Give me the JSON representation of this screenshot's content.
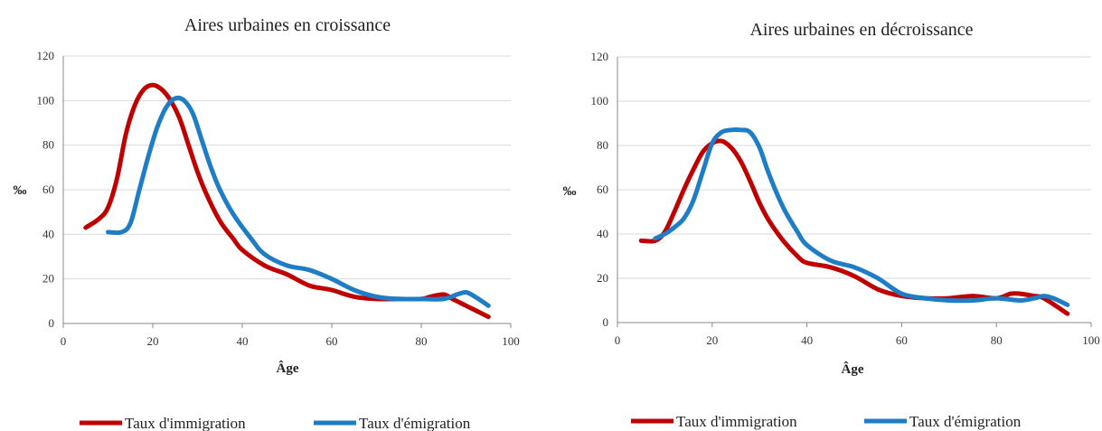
{
  "colors": {
    "immigration": "#c00000",
    "emigration": "#1f7dc6"
  },
  "chart_data": [
    {
      "type": "line",
      "title": "Aires urbaines en croissance",
      "xlabel": "Âge",
      "ylabel": "‰",
      "xlim": [
        0,
        100
      ],
      "ylim": [
        0,
        120
      ],
      "xticks": [
        0,
        20,
        40,
        60,
        80,
        100
      ],
      "yticks": [
        0,
        20,
        40,
        60,
        80,
        100,
        120
      ],
      "grid": "horizontal",
      "legend": "bottom",
      "series": [
        {
          "name": "Taux d'immigration",
          "color": "#c00000",
          "x": [
            5,
            8,
            10,
            12,
            14,
            16,
            18,
            20,
            22,
            24,
            26,
            28,
            30,
            32,
            35,
            38,
            40,
            45,
            50,
            55,
            60,
            65,
            70,
            75,
            80,
            82,
            85,
            87,
            90,
            95
          ],
          "y": [
            43,
            47,
            52,
            65,
            85,
            98,
            105,
            107,
            105,
            100,
            92,
            80,
            68,
            58,
            46,
            38,
            33,
            26,
            22,
            17,
            15,
            12,
            11,
            11,
            11,
            12,
            13,
            11,
            8,
            3
          ]
        },
        {
          "name": "Taux d'émigration",
          "color": "#1f7dc6",
          "x": [
            10,
            13,
            15,
            17,
            19,
            21,
            23,
            25,
            27,
            29,
            31,
            33,
            35,
            38,
            42,
            45,
            50,
            55,
            60,
            65,
            70,
            75,
            80,
            85,
            88,
            90,
            92,
            95
          ],
          "y": [
            41,
            41,
            45,
            60,
            75,
            88,
            97,
            101,
            100,
            94,
            82,
            70,
            60,
            49,
            38,
            31,
            26,
            24,
            20,
            15,
            12,
            11,
            11,
            11,
            13,
            14,
            12,
            8
          ]
        }
      ]
    },
    {
      "type": "line",
      "title": "Aires urbaines en décroissance",
      "xlabel": "Âge",
      "ylabel": "‰",
      "xlim": [
        0,
        100
      ],
      "ylim": [
        0,
        120
      ],
      "xticks": [
        0,
        20,
        40,
        60,
        80,
        100
      ],
      "yticks": [
        0,
        20,
        40,
        60,
        80,
        100,
        120
      ],
      "grid": "horizontal",
      "legend": "bottom",
      "series": [
        {
          "name": "Taux d'immigration",
          "color": "#c00000",
          "x": [
            5,
            8,
            10,
            12,
            14,
            16,
            18,
            20,
            22,
            24,
            26,
            28,
            30,
            32,
            35,
            38,
            40,
            45,
            50,
            55,
            60,
            65,
            70,
            75,
            80,
            83,
            85,
            88,
            90,
            95
          ],
          "y": [
            37,
            37,
            41,
            50,
            60,
            69,
            77,
            81,
            82,
            79,
            73,
            64,
            54,
            46,
            37,
            30,
            27,
            25,
            21,
            15,
            12,
            11,
            11,
            12,
            11,
            13,
            13,
            12,
            11,
            4
          ]
        },
        {
          "name": "Taux d'émigration",
          "color": "#1f7dc6",
          "x": [
            8,
            10,
            12,
            14,
            16,
            18,
            20,
            22,
            24,
            26,
            28,
            30,
            32,
            35,
            38,
            40,
            45,
            50,
            55,
            60,
            65,
            70,
            75,
            80,
            85,
            88,
            90,
            92,
            95
          ],
          "y": [
            38,
            40,
            43,
            47,
            55,
            68,
            81,
            86,
            87,
            87,
            86,
            79,
            67,
            52,
            41,
            35,
            28,
            25,
            20,
            13,
            11,
            10,
            10,
            11,
            10,
            11,
            12,
            11,
            8
          ]
        }
      ]
    }
  ]
}
